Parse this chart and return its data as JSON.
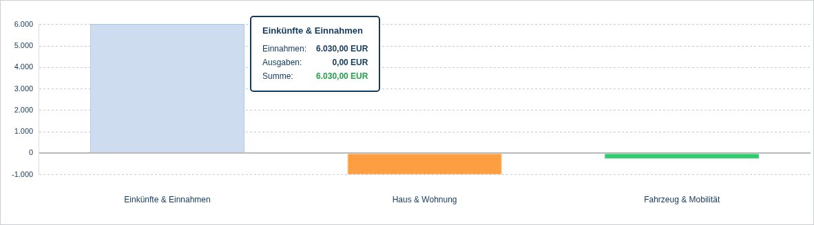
{
  "chart_data": {
    "type": "bar",
    "categories": [
      "Einkünfte & Einnahmen",
      "Haus & Wohnung",
      "Fahrzeug & Mobilität"
    ],
    "values": [
      6030,
      -990,
      -250
    ],
    "colors": [
      "#cddcef",
      "#fd9f41",
      "#2ecc6a"
    ],
    "ylim": [
      -1000,
      6030
    ],
    "yticks": [
      {
        "value": -1000,
        "label": "-1.000"
      },
      0,
      {
        "value": 1000,
        "label": "1.000"
      },
      {
        "value": 2000,
        "label": "2.000"
      },
      {
        "value": 3000,
        "label": "3.000"
      },
      {
        "value": 4000,
        "label": "4.000"
      },
      {
        "value": 5000,
        "label": "5.000"
      },
      {
        "value": 6000,
        "label": "6.000"
      }
    ],
    "grid": "y",
    "legend": false,
    "annotations": [
      "Einkünfte & Einnahmen",
      "Einnahmen:",
      "6.030,00 EUR",
      "Ausgaben:",
      "0,00 EUR",
      "Summe:",
      "6.030,00 EUR"
    ]
  }
}
